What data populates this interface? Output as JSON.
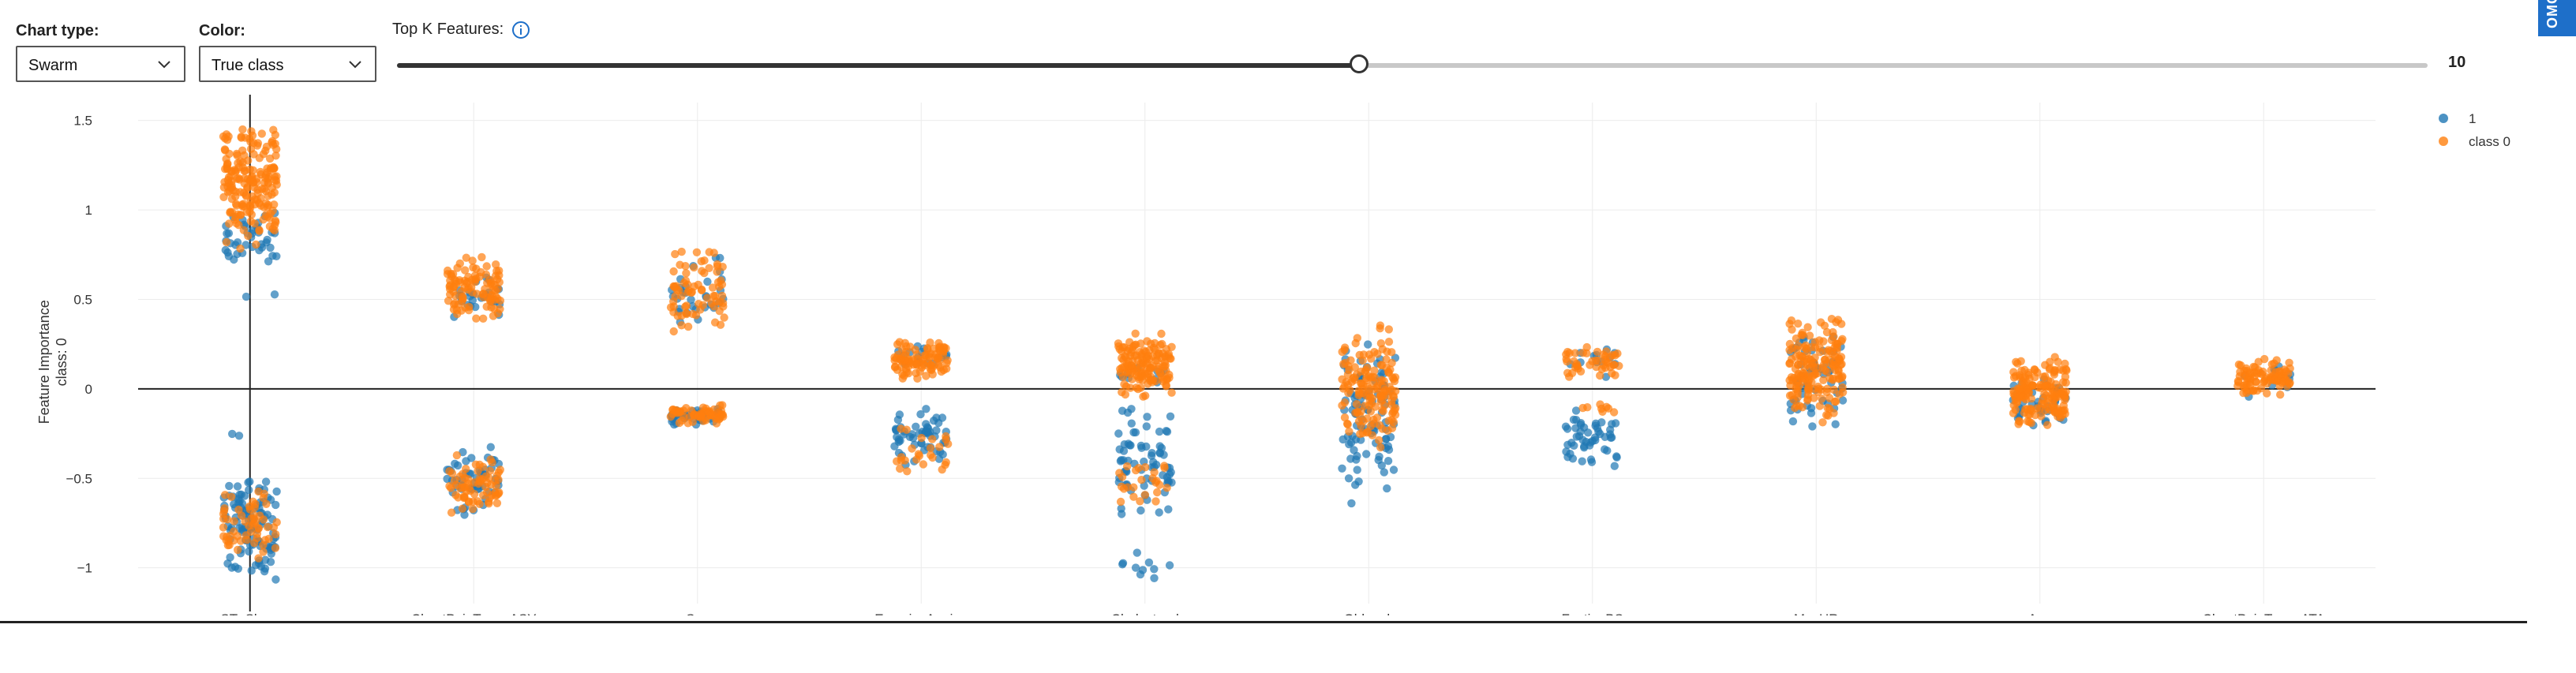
{
  "controls": {
    "chart_type": {
      "label": "Chart type:",
      "value": "Swarm"
    },
    "color": {
      "label": "Color:",
      "value": "True class"
    },
    "top_k": {
      "label": "Top K Features:",
      "value": "10",
      "min": 1,
      "max": 20,
      "current": 10
    }
  },
  "badge": {
    "text": "OMO"
  },
  "colors": {
    "class1": "#1f77b4",
    "class0": "#ff7f0e",
    "axis": "#222222",
    "grid": "#ececec"
  },
  "chart_data": {
    "type": "scatter",
    "subtype": "swarm",
    "title": "",
    "xlabel": "",
    "ylabel": "Feature Importance",
    "ylabel2": "class:  0",
    "ylim": [
      -1.2,
      1.6
    ],
    "yticks": [
      -1,
      -0.5,
      0,
      0.5,
      1,
      1.5
    ],
    "ytick_labels": [
      "−1",
      "−0.5",
      "0",
      "0.5",
      "1",
      "1.5"
    ],
    "grid": true,
    "legend": "top-right",
    "categories": [
      "ST_Slope",
      "ChestPainType_ASY",
      "Sex",
      "ExerciseAngina",
      "Cholesterol",
      "Oldpeak",
      "FastingBS",
      "MaxHR",
      "Age",
      "ChestPainType_ATA"
    ],
    "series": [
      {
        "name": "1",
        "color": "#1f77b4",
        "clusters": [
          [
            [
              -1.1,
              -0.45,
              110
            ],
            [
              0.7,
              1.0,
              40
            ],
            [
              -0.3,
              -0.2,
              2
            ],
            [
              0.5,
              0.55,
              2
            ]
          ],
          [
            [
              -0.75,
              -0.3,
              50
            ],
            [
              0.38,
              0.65,
              25
            ]
          ],
          [
            [
              -0.2,
              -0.1,
              40
            ],
            [
              0.3,
              0.8,
              30
            ]
          ],
          [
            [
              -0.45,
              -0.1,
              55
            ],
            [
              0.1,
              0.25,
              15
            ]
          ],
          [
            [
              -0.75,
              -0.05,
              70
            ],
            [
              -1.1,
              -0.85,
              10
            ],
            [
              0.0,
              0.15,
              10
            ]
          ],
          [
            [
              -0.65,
              0.3,
              90
            ]
          ],
          [
            [
              -0.45,
              -0.1,
              50
            ],
            [
              0.05,
              0.25,
              12
            ]
          ],
          [
            [
              -0.25,
              0.35,
              55
            ]
          ],
          [
            [
              -0.25,
              0.1,
              35
            ]
          ],
          [
            [
              -0.05,
              0.15,
              10
            ]
          ]
        ]
      },
      {
        "name": "class 0",
        "color": "#ff7f0e",
        "clusters": [
          [
            [
              0.75,
              1.5,
              190
            ],
            [
              -1.0,
              -0.55,
              60
            ]
          ],
          [
            [
              0.35,
              0.78,
              100
            ],
            [
              -0.72,
              -0.35,
              70
            ]
          ],
          [
            [
              0.25,
              0.82,
              75
            ],
            [
              -0.2,
              -0.08,
              60
            ]
          ],
          [
            [
              0.05,
              0.28,
              95
            ],
            [
              -0.5,
              -0.15,
              25
            ]
          ],
          [
            [
              -0.05,
              0.32,
              140
            ],
            [
              -0.7,
              -0.35,
              25
            ]
          ],
          [
            [
              -0.35,
              0.38,
              150
            ]
          ],
          [
            [
              0.05,
              0.25,
              45
            ],
            [
              -0.15,
              -0.08,
              8
            ]
          ],
          [
            [
              -0.2,
              0.45,
              170
            ]
          ],
          [
            [
              -0.25,
              0.2,
              160
            ]
          ],
          [
            [
              -0.05,
              0.18,
              90
            ]
          ]
        ]
      }
    ]
  }
}
